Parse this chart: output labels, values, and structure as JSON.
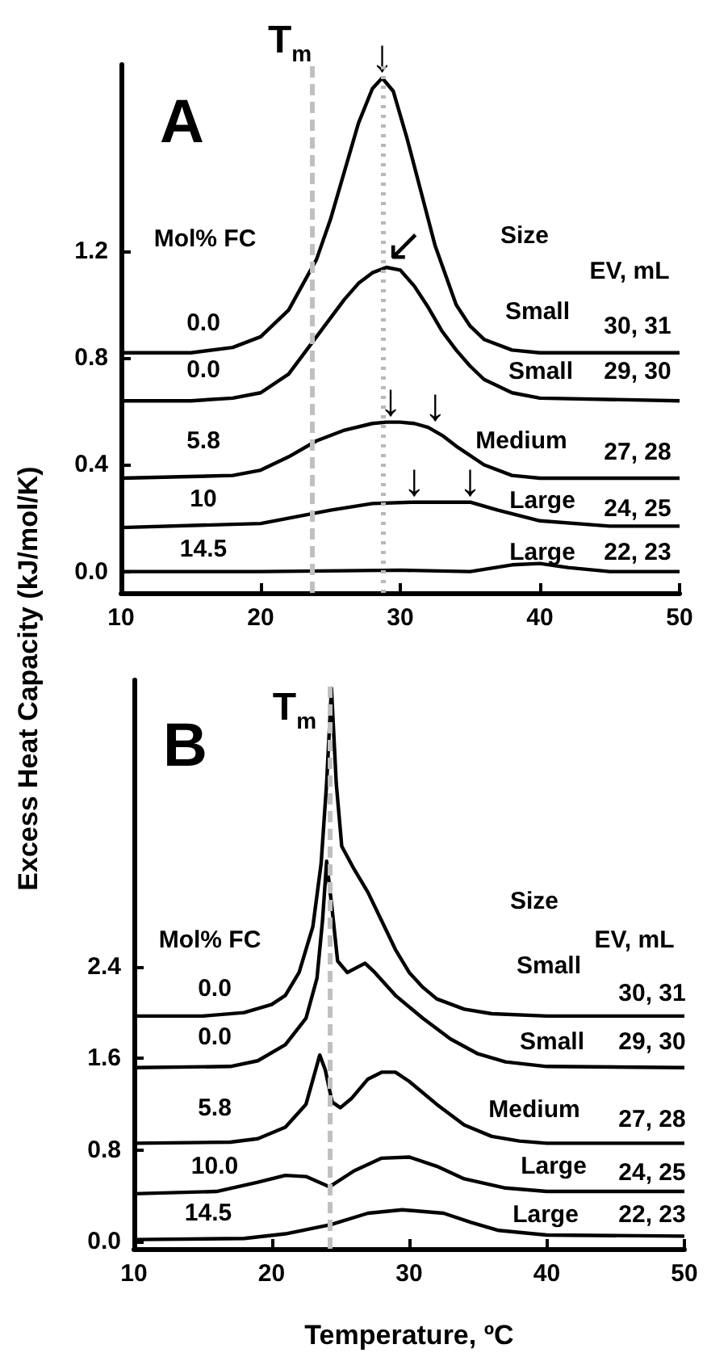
{
  "chart_data": [
    {
      "type": "line",
      "title": "A",
      "ylabel": "Excess Heat Capacity (kJ/mol/K)",
      "xlim": [
        10,
        50
      ],
      "xticks": [
        10,
        20,
        30,
        40,
        50
      ],
      "ylim": [
        -0.08,
        1.9
      ],
      "yticks": [
        {
          "value": 0,
          "label": "0.0"
        },
        {
          "value": 0.4,
          "label": "0.4"
        },
        {
          "value": 0.8,
          "label": "0.8"
        },
        {
          "value": 1.2,
          "label": "1.2"
        }
      ],
      "grid": false,
      "series": [
        {
          "color": "#000000",
          "x": [
            10,
            15,
            18,
            20,
            22,
            24,
            25,
            26,
            27,
            28,
            28.7,
            29.5,
            30.5,
            31.5,
            32.5,
            34,
            35,
            36,
            38,
            40,
            50
          ],
          "values": [
            0.82,
            0.82,
            0.84,
            0.88,
            0.98,
            1.17,
            1.32,
            1.5,
            1.68,
            1.81,
            1.85,
            1.8,
            1.62,
            1.42,
            1.22,
            1.0,
            0.92,
            0.87,
            0.83,
            0.82,
            0.82
          ]
        },
        {
          "color": "#000000",
          "x": [
            10,
            15,
            18,
            20,
            22,
            24,
            26,
            27,
            28,
            29,
            30,
            31,
            32,
            33,
            34,
            35,
            36,
            38,
            40,
            50
          ],
          "values": [
            0.64,
            0.64,
            0.65,
            0.67,
            0.74,
            0.88,
            1.02,
            1.08,
            1.12,
            1.14,
            1.13,
            1.07,
            0.99,
            0.9,
            0.83,
            0.77,
            0.72,
            0.67,
            0.65,
            0.64
          ]
        },
        {
          "color": "#000000",
          "x": [
            10,
            18,
            20,
            22,
            24,
            26,
            28,
            29,
            30,
            31,
            32,
            33,
            34,
            36,
            38,
            40,
            50
          ],
          "values": [
            0.35,
            0.36,
            0.38,
            0.43,
            0.49,
            0.53,
            0.555,
            0.56,
            0.56,
            0.555,
            0.54,
            0.51,
            0.47,
            0.4,
            0.36,
            0.35,
            0.35
          ]
        },
        {
          "color": "#000000",
          "x": [
            10,
            20,
            25,
            28,
            31,
            35,
            37,
            40,
            45,
            50
          ],
          "values": [
            0.165,
            0.18,
            0.23,
            0.255,
            0.26,
            0.26,
            0.23,
            0.19,
            0.17,
            0.17
          ]
        },
        {
          "color": "#000000",
          "x": [
            10,
            20,
            30,
            35,
            38,
            40,
            42,
            45,
            50
          ],
          "values": [
            0.0,
            0.0,
            0.005,
            0.0,
            0.025,
            0.03,
            0.015,
            0.0,
            0.0
          ]
        }
      ],
      "ref_lines": [
        {
          "axis": "x",
          "value": 23.7,
          "label": "T$_{m}$",
          "color": "#c0c0c0",
          "line_style": "dashed"
        },
        {
          "axis": "x",
          "value": 28.7,
          "color": "#b8b8b8",
          "line_style": "dotted"
        }
      ],
      "annotations": [
        {
          "text": "↓",
          "x": 28.7,
          "y": 1.85
        },
        {
          "text": "↙",
          "x": 28.9,
          "y": 1.14
        },
        {
          "text": "↓",
          "x": 29.3,
          "y": 0.56
        },
        {
          "text": "↓",
          "x": 32.5,
          "y": 0.54
        },
        {
          "text": "↓",
          "x": 31,
          "y": 0.26
        },
        {
          "text": "↓",
          "x": 35,
          "y": 0.26
        },
        "Mol% FC",
        "0.0",
        "0.0",
        "5.8",
        "10",
        "14.5",
        "Size",
        "EV, mL",
        "Small",
        "30, 31",
        "Small",
        "29, 30",
        "Medium",
        "27, 28",
        "Large",
        "24, 25",
        "Large",
        "22, 23"
      ]
    },
    {
      "type": "line",
      "title": "B",
      "xlabel": "Temperature, ºC",
      "xlim": [
        10,
        50
      ],
      "xticks": [
        10,
        20,
        30,
        40,
        50
      ],
      "ylim": [
        -0.06,
        4.9
      ],
      "yticks": [
        {
          "value": 0,
          "label": "0.0"
        },
        {
          "value": 0.8,
          "label": "0.8"
        },
        {
          "value": 1.6,
          "label": "1.6"
        },
        {
          "value": 2.4,
          "label": "2.4"
        }
      ],
      "grid": false,
      "series": [
        {
          "color": "#000000",
          "x": [
            10,
            15,
            18,
            20,
            21,
            22,
            23,
            23.6,
            24.0,
            24.35,
            24.7,
            25.1,
            26,
            27,
            28,
            29,
            30,
            31,
            32,
            34,
            36,
            40,
            50
          ],
          "values": [
            1.97,
            1.97,
            2.0,
            2.07,
            2.15,
            2.35,
            2.75,
            3.3,
            4.0,
            4.83,
            4.0,
            3.45,
            3.25,
            3.05,
            2.8,
            2.55,
            2.35,
            2.22,
            2.12,
            2.03,
            1.99,
            1.97,
            1.97
          ]
        },
        {
          "color": "#000000",
          "x": [
            10,
            17,
            19,
            21,
            22.5,
            23.3,
            23.7,
            24.0,
            24.4,
            24.8,
            25.5,
            26.3,
            26.8,
            27.5,
            29,
            31,
            33,
            35,
            37,
            40,
            50
          ],
          "values": [
            1.52,
            1.53,
            1.58,
            1.72,
            1.95,
            2.3,
            2.8,
            3.32,
            2.9,
            2.45,
            2.35,
            2.4,
            2.43,
            2.35,
            2.15,
            1.95,
            1.77,
            1.64,
            1.57,
            1.53,
            1.52
          ]
        },
        {
          "color": "#000000",
          "x": [
            10,
            17,
            19,
            21,
            22.5,
            23.2,
            23.5,
            23.9,
            24.4,
            25,
            25.8,
            27,
            28,
            29,
            30,
            32,
            34,
            36,
            38,
            40,
            50
          ],
          "values": [
            0.86,
            0.87,
            0.9,
            1.0,
            1.2,
            1.5,
            1.63,
            1.5,
            1.22,
            1.17,
            1.25,
            1.42,
            1.48,
            1.48,
            1.4,
            1.2,
            1.02,
            0.92,
            0.88,
            0.86,
            0.86
          ]
        },
        {
          "color": "#000000",
          "x": [
            10,
            16,
            19,
            21,
            22.5,
            24.2,
            26,
            28,
            30,
            32,
            34,
            37,
            40,
            50
          ],
          "values": [
            0.42,
            0.44,
            0.52,
            0.58,
            0.57,
            0.48,
            0.62,
            0.73,
            0.74,
            0.66,
            0.55,
            0.47,
            0.44,
            0.44
          ]
        },
        {
          "color": "#000000",
          "x": [
            10,
            18,
            21,
            24.3,
            27,
            29.5,
            32.5,
            34.5,
            36.5,
            40,
            50
          ],
          "values": [
            0.02,
            0.03,
            0.07,
            0.15,
            0.25,
            0.28,
            0.25,
            0.17,
            0.1,
            0.06,
            0.05
          ]
        }
      ],
      "ref_lines": [
        {
          "axis": "x",
          "value": 24.25,
          "label": "T$_{m}$",
          "color": "#c0c0c0",
          "line_style": "dashed"
        }
      ],
      "annotations": [
        "Mol% FC",
        "0.0",
        "0.0",
        "5.8",
        "10.0",
        "14.5",
        "Size",
        "EV, mL",
        "Small",
        "30, 31",
        "Small",
        "29, 30",
        "Medium",
        "27, 28",
        "Large",
        "24, 25",
        "Large",
        "22, 23"
      ]
    }
  ]
}
